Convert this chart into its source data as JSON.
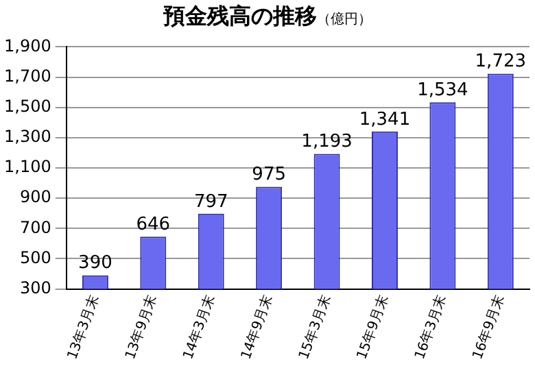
{
  "chart_data": {
    "type": "bar",
    "title": "預金残高の推移",
    "ylabel": "（億円）",
    "categories": [
      "13年3月末",
      "13年9月末",
      "14年3月末",
      "14年9月末",
      "15年3月末",
      "15年9月末",
      "16年3月末",
      "16年9月末"
    ],
    "values": [
      390,
      646,
      797,
      975,
      1193,
      1341,
      1534,
      1723
    ],
    "value_labels": [
      "390",
      "646",
      "797",
      "975",
      "1,193",
      "1,341",
      "1,534",
      "1,723"
    ],
    "color": "#6a6af0",
    "ylim": [
      300,
      1900
    ],
    "yticks": [
      {
        "value": 300,
        "label": "300"
      },
      {
        "value": 500,
        "label": "500"
      },
      {
        "value": 700,
        "label": "700"
      },
      {
        "value": 900,
        "label": "900"
      },
      {
        "value": 1100,
        "label": "1,100"
      },
      {
        "value": 1300,
        "label": "1,300"
      },
      {
        "value": 1500,
        "label": "1,500"
      },
      {
        "value": 1700,
        "label": "1,700"
      },
      {
        "value": 1900,
        "label": "1,900"
      }
    ],
    "grid": "y",
    "legend": false
  }
}
